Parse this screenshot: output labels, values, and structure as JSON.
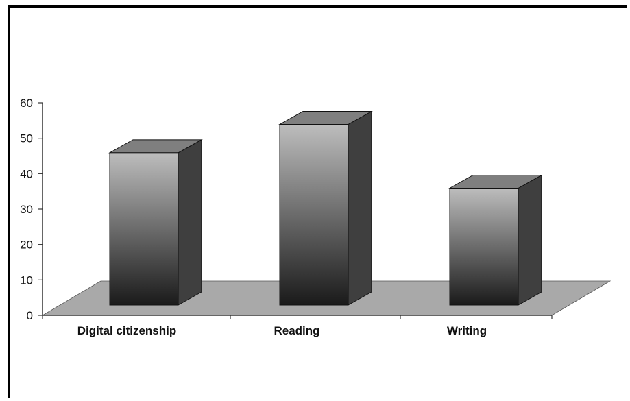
{
  "chart_data": {
    "type": "bar",
    "categories": [
      "Digital citizenship",
      "Reading",
      "Writing"
    ],
    "values": [
      43,
      51,
      33
    ],
    "ylim": [
      0,
      60
    ],
    "yticks": [
      0,
      10,
      20,
      30,
      40,
      50,
      60
    ],
    "title": "",
    "xlabel": "",
    "ylabel": "",
    "grid": false,
    "legend": "none",
    "style": "3d",
    "colors": {
      "floor": "#a9a9a9",
      "bar_top": "#7f7f7f",
      "bar_side": "#3f3f3f",
      "bar_face_light": "#bdbdbd",
      "bar_face_dark": "#1a1a1a",
      "axis": "#333333"
    }
  }
}
